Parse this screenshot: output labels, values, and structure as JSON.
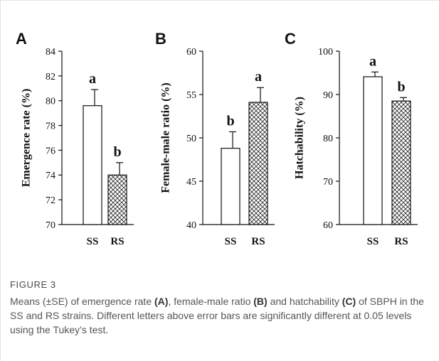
{
  "figure": {
    "caption_label": "FIGURE 3",
    "caption_parts": [
      {
        "text": "Means (±SE) of emergence rate ",
        "bold": false
      },
      {
        "text": "(A)",
        "bold": true
      },
      {
        "text": ", female-male ratio ",
        "bold": false
      },
      {
        "text": "(B)",
        "bold": true
      },
      {
        "text": " and hatchability ",
        "bold": false
      },
      {
        "text": "(C)",
        "bold": true
      },
      {
        "text": " of SBPH in the SS and RS strains. Different letters above error bars are significantly different at 0.05 levels using the Tukey’s test.",
        "bold": false
      }
    ]
  },
  "chart_data": [
    {
      "type": "bar",
      "panel": "A",
      "title": "",
      "xlabel": "",
      "ylabel": "Emergence rate (%)",
      "categories": [
        "SS",
        "RS"
      ],
      "values": [
        79.6,
        74.0
      ],
      "errors": [
        1.3,
        1.0
      ],
      "letters": [
        "a",
        "b"
      ],
      "patterns": [
        "open",
        "crosshatch"
      ],
      "ylim": [
        70,
        84
      ],
      "yticks": [
        70,
        72,
        74,
        76,
        78,
        80,
        82,
        84
      ]
    },
    {
      "type": "bar",
      "panel": "B",
      "title": "",
      "xlabel": "",
      "ylabel": "Female-male ratio (%)",
      "categories": [
        "SS",
        "RS"
      ],
      "values": [
        48.8,
        54.1
      ],
      "errors": [
        1.9,
        1.7
      ],
      "letters": [
        "b",
        "a"
      ],
      "patterns": [
        "open",
        "crosshatch"
      ],
      "ylim": [
        40,
        60
      ],
      "yticks": [
        40,
        45,
        50,
        55,
        60
      ]
    },
    {
      "type": "bar",
      "panel": "C",
      "title": "",
      "xlabel": "",
      "ylabel": "Hatchability (%)",
      "categories": [
        "SS",
        "RS"
      ],
      "values": [
        94.1,
        88.5
      ],
      "errors": [
        1.1,
        0.8
      ],
      "letters": [
        "a",
        "b"
      ],
      "patterns": [
        "open",
        "crosshatch"
      ],
      "ylim": [
        60,
        100
      ],
      "yticks": [
        60,
        70,
        80,
        90,
        100
      ]
    }
  ]
}
